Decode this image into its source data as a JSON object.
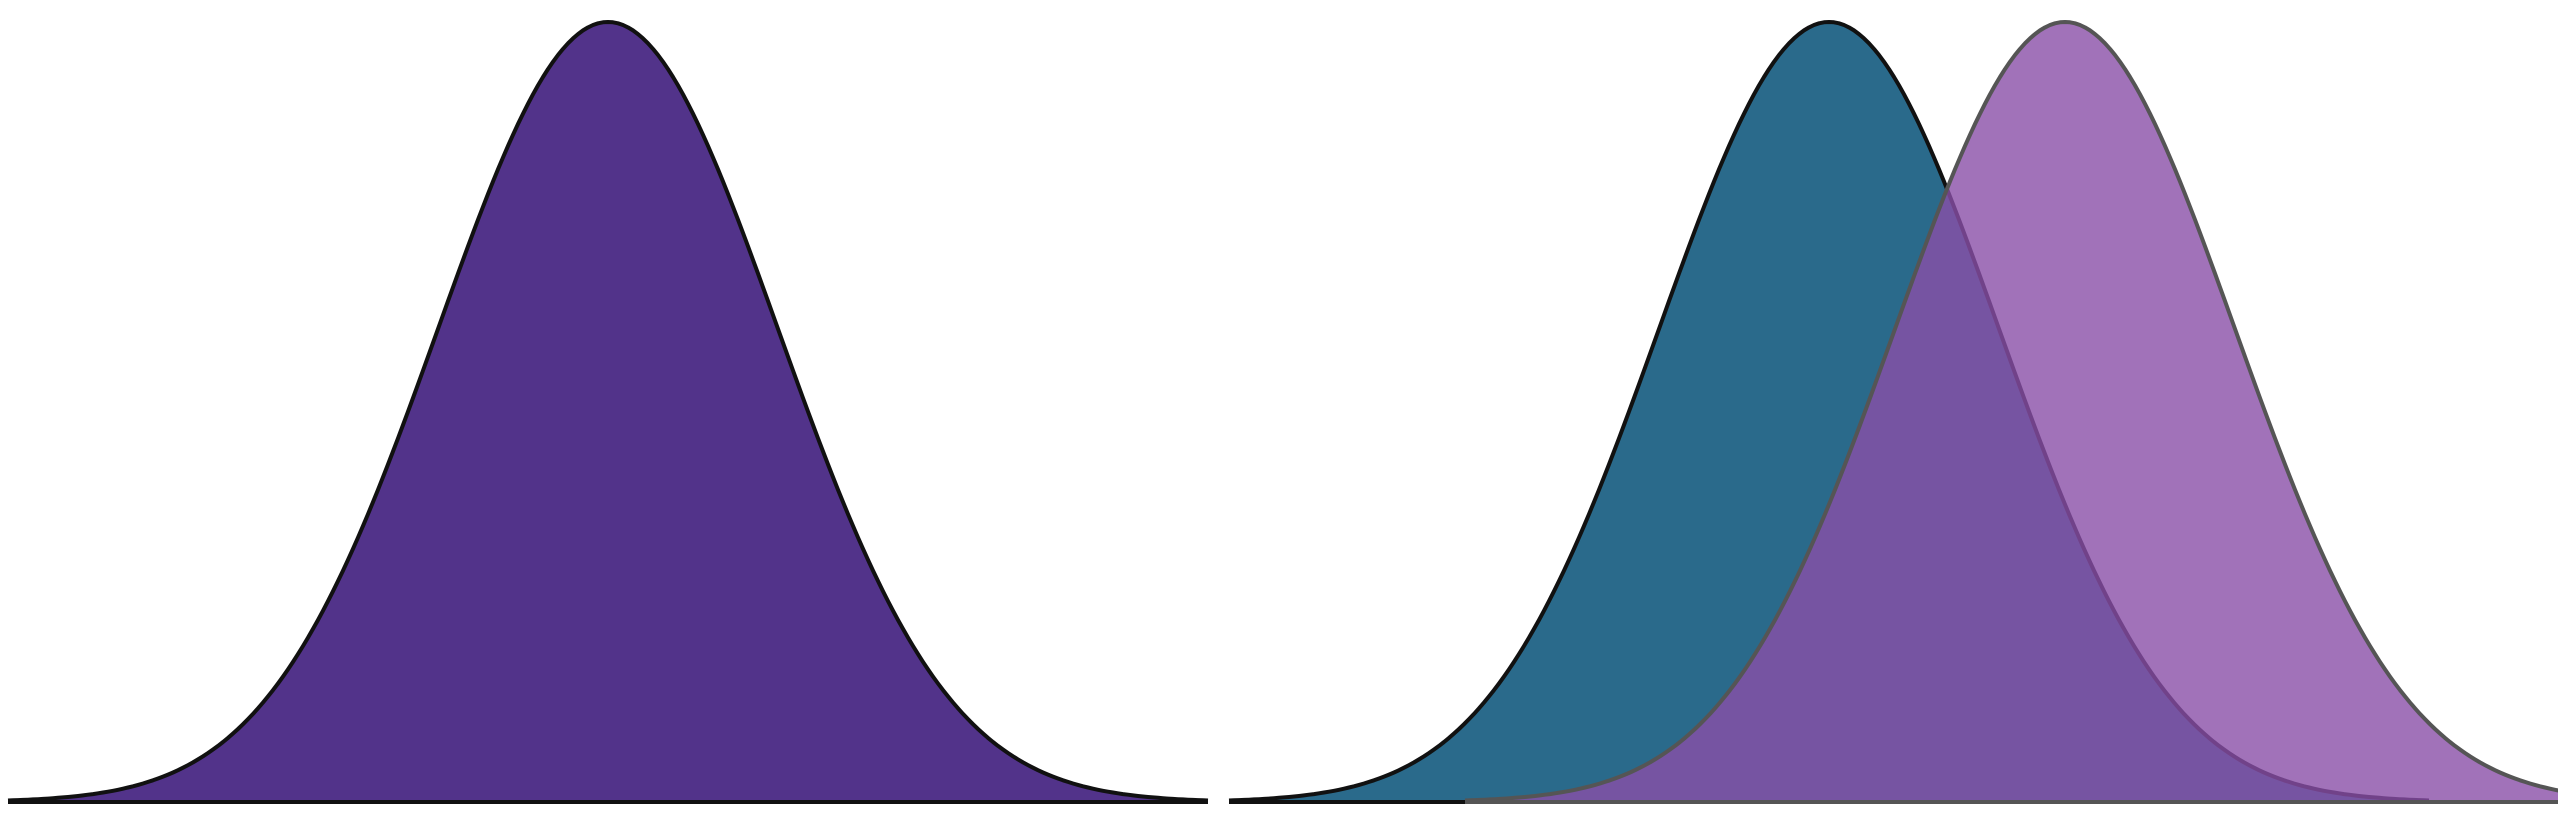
{
  "diagram": {
    "panels": [
      {
        "curves": [
          {
            "mean": 0,
            "fill": "#52338a",
            "stroke": "#111111",
            "fill_opacity": 1.0
          }
        ]
      },
      {
        "curves": [
          {
            "mean": 0,
            "fill": "#2a6a8b",
            "stroke": "#111111",
            "fill_opacity": 1.0
          },
          {
            "mean": 1,
            "fill": "#8a4fa8",
            "stroke": "#555555",
            "fill_opacity": 0.8
          }
        ]
      }
    ]
  }
}
